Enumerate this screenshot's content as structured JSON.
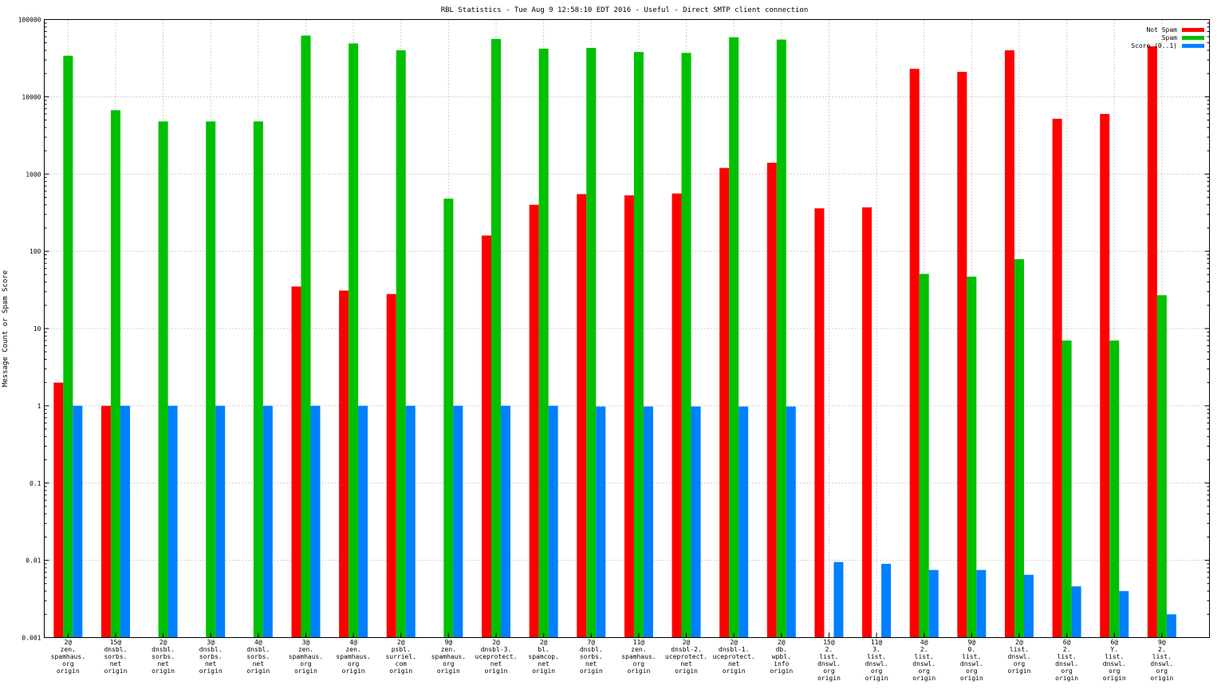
{
  "chart_data": {
    "type": "bar",
    "title": "RBL Statistics - Tue Aug  9 12:58:10 EDT 2016 - Useful - Direct SMTP client connection",
    "xlabel": "",
    "ylabel": "Message Count or Spam Score",
    "yscale": "log",
    "ylim": [
      0.001,
      100000
    ],
    "yticks": [
      "0.001",
      "0.01",
      "0.1",
      "1",
      "10",
      "100",
      "1000",
      "10000",
      "100000"
    ],
    "grid": "on (dotted)",
    "legend_position": "top-right",
    "categories": [
      [
        "2@",
        "zen.",
        "spamhaus.",
        "org",
        "origin"
      ],
      [
        "15@",
        "dnsbl.",
        "sorbs.",
        "net",
        "origin"
      ],
      [
        "2@",
        "dnsbl.",
        "sorbs.",
        "net",
        "origin"
      ],
      [
        "3@",
        "dnsbl.",
        "sorbs.",
        "net",
        "origin"
      ],
      [
        "4@",
        "dnsbl.",
        "sorbs.",
        "net",
        "origin"
      ],
      [
        "3@",
        "zen.",
        "spamhaus.",
        "org",
        "origin"
      ],
      [
        "4@",
        "zen.",
        "spamhaus.",
        "org",
        "origin"
      ],
      [
        "2@",
        "psbl.",
        "surriel.",
        "com",
        "origin"
      ],
      [
        "9@",
        "zen.",
        "spamhaus.",
        "org",
        "origin"
      ],
      [
        "2@",
        "dnsbl-3.",
        "uceprotect.",
        "net",
        "origin"
      ],
      [
        "2@",
        "bl.",
        "spamcop.",
        "net",
        "origin"
      ],
      [
        "7@",
        "dnsbl.",
        "sorbs.",
        "net",
        "origin"
      ],
      [
        "11@",
        "zen.",
        "spamhaus.",
        "org",
        "origin"
      ],
      [
        "2@",
        "dnsbl-2.",
        "uceprotect.",
        "net",
        "origin"
      ],
      [
        "2@",
        "dnsbl-1.",
        "uceprotect.",
        "net",
        "origin"
      ],
      [
        "2@",
        "db.",
        "wpbl.",
        "info",
        "origin"
      ],
      [
        "15@",
        "2.",
        "list.",
        "dnswl.",
        "org",
        "origin"
      ],
      [
        "11@",
        "3.",
        "list.",
        "dnswl.",
        "org",
        "origin"
      ],
      [
        "4@",
        "2.",
        "list.",
        "dnswl.",
        "org",
        "origin"
      ],
      [
        "9@",
        "0.",
        "list.",
        "dnswl.",
        "org",
        "origin"
      ],
      [
        "2@",
        "list.",
        "dnswl.",
        "org",
        "origin"
      ],
      [
        "6@",
        "2.",
        "list.",
        "dnswl.",
        "org",
        "origin"
      ],
      [
        "6@",
        "Y.",
        "list.",
        "dnswl.",
        "org",
        "origin"
      ],
      [
        "9@",
        "2.",
        "list.",
        "dnswl.",
        "org",
        "origin"
      ]
    ],
    "series": [
      {
        "name": "Not Spam",
        "color": "#ff0000",
        "values": [
          2,
          1,
          null,
          null,
          null,
          35,
          31,
          28,
          null,
          160,
          400,
          550,
          530,
          560,
          1200,
          1400,
          360,
          370,
          23000,
          21000,
          40000,
          5200,
          6000,
          45000
        ]
      },
      {
        "name": "Spam",
        "color": "#00c000",
        "values": [
          34000,
          6700,
          4800,
          4800,
          4800,
          62000,
          49000,
          40000,
          480,
          56000,
          42000,
          43000,
          38000,
          37000,
          59000,
          55000,
          null,
          null,
          51,
          47,
          79,
          7,
          7,
          27
        ]
      },
      {
        "name": "Score (0..1)",
        "color": "#0080ff",
        "values": [
          1,
          1,
          1,
          1,
          1,
          1,
          1,
          1,
          1,
          1,
          1,
          0.98,
          0.98,
          0.98,
          0.98,
          0.98,
          0.0095,
          0.009,
          0.0075,
          0.0075,
          0.0065,
          0.0046,
          0.004,
          0.002
        ]
      }
    ]
  }
}
